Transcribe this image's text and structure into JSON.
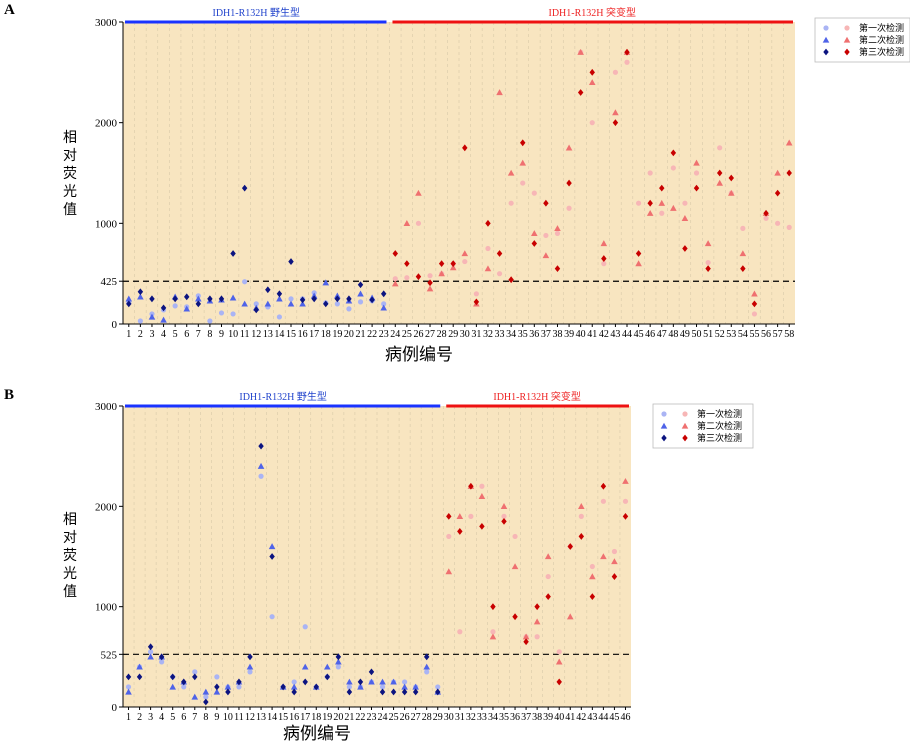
{
  "colors": {
    "background": "#f8e5c0",
    "wild_bar": "#1a33ff",
    "mutant_bar": "#ee1111",
    "wild_text": "#2244cc",
    "mutant_text": "#ee2222",
    "wild1": "#aab4f4",
    "wild2": "#4f63e8",
    "wild3": "#0c1480",
    "mut1": "#f7b6b6",
    "mut2": "#ef7070",
    "mut3": "#c80000"
  },
  "legend": {
    "items": [
      "第一次检测",
      "第二次检测",
      "第三次检测"
    ]
  },
  "panels": [
    {
      "letter": "A",
      "wild_label": "IDH1-R132H 野生型",
      "mutant_label": "IDH1-R132H 突变型",
      "ylabel": "相对荧光值",
      "xlabel": "病例编号"
    },
    {
      "letter": "B",
      "wild_label": "IDH1-R132H 野生型",
      "mutant_label": "IDH1-R132H 突变型",
      "ylabel": "相对荧光值",
      "xlabel": "病例编号"
    }
  ],
  "chart_data": [
    {
      "type": "scatter",
      "title": "",
      "xlabel": "病例编号",
      "ylabel": "相对荧光值",
      "ylim": [
        0,
        3000
      ],
      "yticks": [
        0,
        425,
        1000,
        2000,
        3000
      ],
      "threshold": 425,
      "threshold_style": "dashed",
      "wild_cases": [
        1,
        23
      ],
      "mutant_cases": [
        24,
        58
      ],
      "x": [
        1,
        2,
        3,
        4,
        5,
        6,
        7,
        8,
        9,
        10,
        11,
        12,
        13,
        14,
        15,
        16,
        17,
        18,
        19,
        20,
        21,
        22,
        23,
        24,
        25,
        26,
        27,
        28,
        29,
        30,
        31,
        32,
        33,
        34,
        35,
        36,
        37,
        38,
        39,
        40,
        41,
        42,
        43,
        44,
        45,
        46,
        47,
        48,
        49,
        50,
        51,
        52,
        53,
        54,
        55,
        56,
        57,
        58
      ],
      "series": [
        {
          "name": "第一次检测",
          "marker": "circle",
          "values": [
            210,
            30,
            100,
            140,
            180,
            170,
            280,
            30,
            110,
            100,
            420,
            200,
            170,
            70,
            250,
            250,
            310,
            210,
            200,
            150,
            220,
            230,
            200,
            450,
            460,
            1000,
            480,
            500,
            600,
            620,
            300,
            750,
            500,
            1200,
            1400,
            1300,
            880,
            900,
            1150,
            2700,
            2000,
            600,
            2500,
            2600,
            1200,
            1500,
            1100,
            1550,
            1200,
            1500,
            610,
            1750,
            1300,
            950,
            100,
            1050,
            1000,
            960
          ]
        },
        {
          "name": "第二次检测",
          "marker": "triangle",
          "values": [
            250,
            270,
            70,
            40,
            270,
            150,
            250,
            230,
            240,
            260,
            200,
            160,
            200,
            250,
            200,
            200,
            280,
            410,
            280,
            230,
            300,
            260,
            160,
            400,
            1000,
            1300,
            350,
            500,
            560,
            700,
            200,
            550,
            2300,
            1500,
            1600,
            900,
            680,
            950,
            1750,
            2700,
            2400,
            800,
            2100,
            2700,
            600,
            1100,
            1200,
            1150,
            1050,
            1600,
            800,
            1400,
            1300,
            700,
            300,
            1100,
            1500,
            1800
          ]
        },
        {
          "name": "第三次检测",
          "marker": "diamond",
          "values": [
            200,
            320,
            250,
            160,
            250,
            270,
            200,
            250,
            250,
            700,
            1350,
            140,
            340,
            300,
            620,
            240,
            250,
            200,
            250,
            250,
            390,
            240,
            300,
            700,
            600,
            470,
            410,
            600,
            600,
            1750,
            220,
            1000,
            700,
            440,
            1800,
            800,
            1200,
            550,
            1400,
            2300,
            2500,
            650,
            2000,
            2700,
            700,
            1200,
            1350,
            1700,
            750,
            1350,
            550,
            1500,
            1450,
            550,
            200,
            1100,
            1300,
            1500
          ]
        }
      ]
    },
    {
      "type": "scatter",
      "title": "",
      "xlabel": "病例编号",
      "ylabel": "相对荧光值",
      "ylim": [
        0,
        3000
      ],
      "yticks": [
        0,
        525,
        1000,
        2000,
        3000
      ],
      "threshold": 525,
      "threshold_style": "dashed",
      "wild_cases": [
        1,
        29
      ],
      "mutant_cases": [
        30,
        46
      ],
      "x": [
        1,
        2,
        3,
        4,
        5,
        6,
        7,
        8,
        9,
        10,
        11,
        12,
        13,
        14,
        15,
        16,
        17,
        18,
        19,
        20,
        21,
        22,
        23,
        24,
        25,
        26,
        27,
        28,
        29,
        30,
        31,
        32,
        33,
        34,
        35,
        36,
        37,
        38,
        39,
        40,
        41,
        42,
        43,
        44,
        45,
        46
      ],
      "series": [
        {
          "name": "第一次检测",
          "marker": "circle",
          "values": [
            200,
            400,
            550,
            450,
            300,
            200,
            350,
            100,
            300,
            200,
            200,
            350,
            2300,
            900,
            200,
            250,
            800,
            200,
            300,
            400,
            200,
            200,
            250,
            200,
            250,
            250,
            200,
            350,
            200,
            1700,
            750,
            1900,
            2200,
            750,
            1900,
            1700,
            700,
            700,
            1300,
            550,
            1600,
            1900,
            1400,
            2050,
            1550,
            2050
          ]
        },
        {
          "name": "第二次检测",
          "marker": "triangle",
          "values": [
            150,
            400,
            500,
            500,
            200,
            250,
            100,
            150,
            150,
            200,
            250,
            400,
            2400,
            1600,
            200,
            200,
            400,
            200,
            400,
            450,
            250,
            200,
            250,
            250,
            250,
            200,
            200,
            400,
            150,
            1350,
            1900,
            2200,
            2100,
            700,
            2000,
            1400,
            700,
            850,
            1500,
            450,
            900,
            2000,
            1300,
            1500,
            1450,
            2250
          ]
        },
        {
          "name": "第三次检测",
          "marker": "diamond",
          "values": [
            300,
            300,
            600,
            500,
            300,
            250,
            300,
            50,
            200,
            150,
            250,
            500,
            2600,
            1500,
            200,
            150,
            250,
            200,
            300,
            500,
            150,
            250,
            350,
            150,
            150,
            150,
            150,
            500,
            150,
            1900,
            1750,
            2200,
            1800,
            1000,
            1850,
            900,
            650,
            1000,
            1100,
            250,
            1600,
            1700,
            1100,
            2200,
            1300,
            1900
          ]
        }
      ]
    }
  ]
}
